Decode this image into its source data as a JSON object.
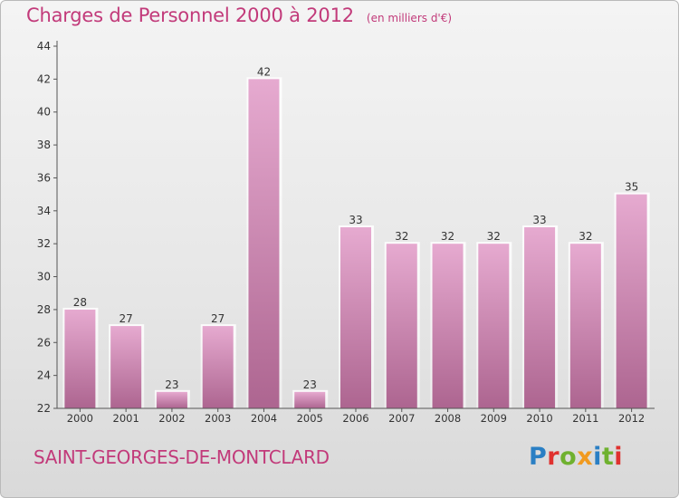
{
  "header": {
    "title": "Charges de Personnel 2000 à 2012",
    "subtitle": "(en milliers d'€)"
  },
  "footer": {
    "commune": "SAINT-GEORGES-DE-MONTCLARD",
    "logo": "Proxiti"
  },
  "colors": {
    "accent": "#c23a7a",
    "bar_top": "#e3a6cc",
    "bar_bottom": "#b0678f"
  },
  "chart_data": {
    "type": "bar",
    "title": "Charges de Personnel 2000 à 2012",
    "subtitle": "(en milliers d'€)",
    "xlabel": "",
    "ylabel": "",
    "categories": [
      "2000",
      "2001",
      "2002",
      "2003",
      "2004",
      "2005",
      "2006",
      "2007",
      "2008",
      "2009",
      "2010",
      "2011",
      "2012"
    ],
    "values": [
      28,
      27,
      23,
      27,
      42,
      23,
      33,
      32,
      32,
      32,
      33,
      32,
      35
    ],
    "ylim": [
      22,
      44
    ],
    "yticks": [
      22,
      24,
      26,
      28,
      30,
      32,
      34,
      36,
      38,
      40,
      42,
      44
    ],
    "grid": false
  }
}
